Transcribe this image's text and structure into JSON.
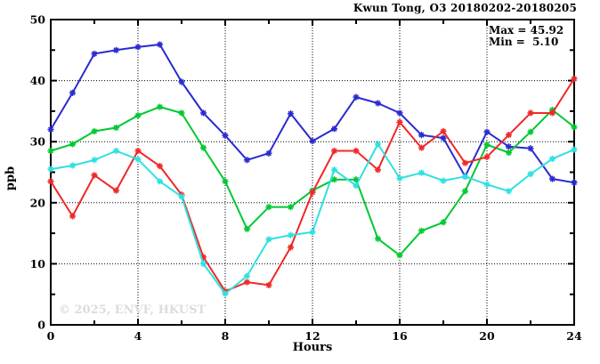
{
  "annotations": {
    "max_label": "Max = 45.92",
    "min_label": "Min =  5.10",
    "watermark": "© 2025, ENVF, HKUST"
  },
  "chart_data": {
    "type": "line",
    "title": "Kwun Tong, O3 20180202-20180205",
    "xlabel": "Hours",
    "ylabel": "ppb",
    "xlim": [
      0,
      24
    ],
    "ylim": [
      0,
      50
    ],
    "x_major_ticks": [
      0,
      4,
      8,
      12,
      16,
      20,
      24
    ],
    "x_minor_step": 2,
    "y_major_ticks": [
      0,
      10,
      20,
      30,
      40,
      50
    ],
    "y_minor_step": 5,
    "grid": "dotted at major ticks",
    "legend": "none",
    "marker": "asterisk",
    "axis_color": "#000000",
    "x": [
      0,
      1,
      2,
      3,
      4,
      5,
      6,
      7,
      8,
      9,
      10,
      11,
      12,
      13,
      14,
      15,
      16,
      17,
      18,
      19,
      20,
      21,
      22,
      23,
      24
    ],
    "series": [
      {
        "name": "blue-line",
        "color": "#2a2ad0",
        "values": [
          32.0,
          38.0,
          44.4,
          45.0,
          45.5,
          45.92,
          39.8,
          34.7,
          31.0,
          27.0,
          28.1,
          34.6,
          30.1,
          32.1,
          37.3,
          36.3,
          34.7,
          31.1,
          30.6,
          24.3,
          31.6,
          29.2,
          28.9,
          23.9,
          23.3
        ]
      },
      {
        "name": "green-line",
        "color": "#00c832",
        "values": [
          28.5,
          29.6,
          31.7,
          32.3,
          34.3,
          35.7,
          34.7,
          29.0,
          23.5,
          15.7,
          19.3,
          19.3,
          22.0,
          23.8,
          23.8,
          14.1,
          11.4,
          15.4,
          16.8,
          21.9,
          29.5,
          28.2,
          31.6,
          35.2,
          32.4
        ]
      },
      {
        "name": "red-line",
        "color": "#f02828",
        "values": [
          23.5,
          17.8,
          24.5,
          22.0,
          28.5,
          26.0,
          21.3,
          11.1,
          5.5,
          7.0,
          6.5,
          12.7,
          21.7,
          28.5,
          28.5,
          25.4,
          33.2,
          29.0,
          31.7,
          26.5,
          27.5,
          31.1,
          34.7,
          34.7,
          40.3
        ]
      },
      {
        "name": "cyan-line",
        "color": "#30e0e0",
        "values": [
          25.5,
          26.1,
          27.0,
          28.5,
          27.1,
          23.5,
          21.0,
          10.0,
          5.1,
          8.0,
          14.0,
          14.7,
          15.2,
          25.4,
          22.8,
          29.6,
          24.0,
          24.9,
          23.6,
          24.3,
          23.0,
          21.9,
          24.7,
          27.2,
          28.7
        ]
      }
    ],
    "stats": {
      "max": 45.92,
      "min": 5.1
    }
  }
}
